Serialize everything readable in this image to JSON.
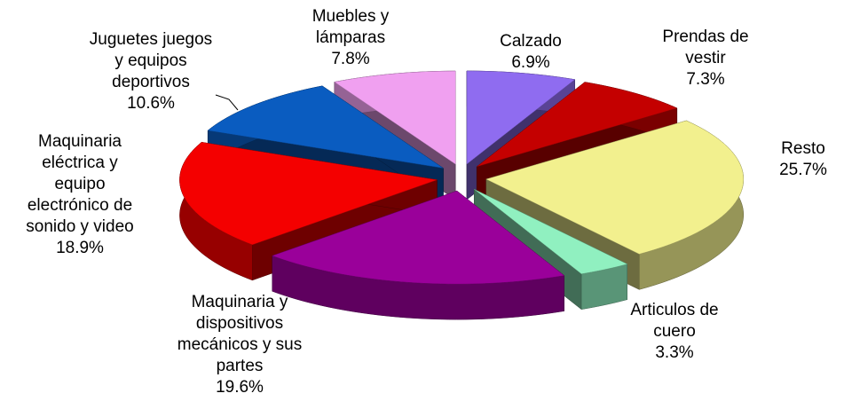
{
  "chart_data": {
    "type": "pie3d",
    "categories": [
      "Calzado",
      "Prendas de\nvestir",
      "Resto",
      "Articulos de\ncuero",
      "Maquinaria y\ndispositivos\nmecánicos y sus\npartes",
      "Maquinaria\neléctrica y\nequipo\nelectrónico de\nsonido y video",
      "Juguetes juegos\ny equipos\ndeportivos",
      "Muebles y\nlámparas"
    ],
    "values": [
      6.9,
      7.3,
      25.7,
      3.3,
      19.6,
      18.9,
      10.6,
      7.8
    ],
    "value_labels": [
      "6.9%",
      "7.3%",
      "25.7%",
      "3.3%",
      "19.6%",
      "18.9%",
      "10.6%",
      "7.8%"
    ],
    "colors": [
      "#8f6cf0",
      "#c40000",
      "#f2f08e",
      "#90f0c0",
      "#9a009a",
      "#f40000",
      "#0a5cc0",
      "#f0a0f0"
    ]
  }
}
